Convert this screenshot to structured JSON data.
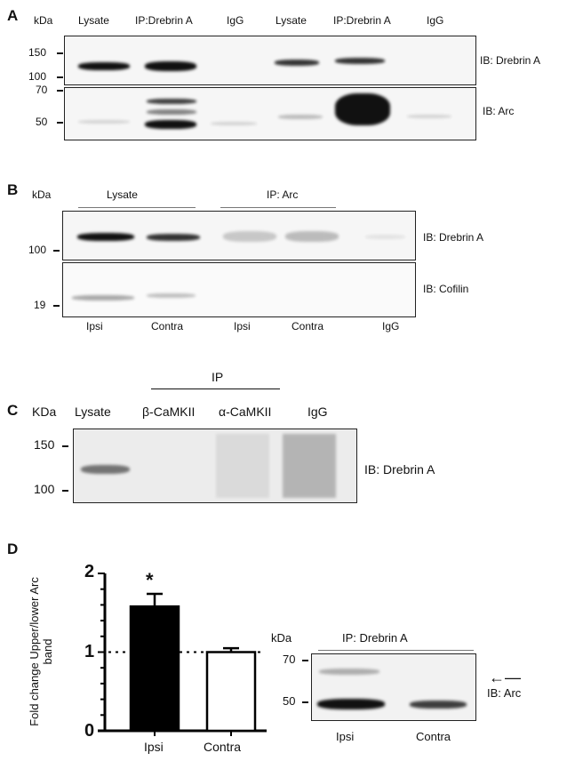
{
  "panelA": {
    "label": "A",
    "kda": "kDa",
    "lanes": [
      "Lysate",
      "IP:Drebrin A",
      "IgG",
      "Lysate",
      "IP:Drebrin A",
      "IgG"
    ],
    "markers": [
      "150",
      "100",
      "70",
      "50"
    ],
    "ib": [
      "IB: Drebrin A",
      "IB: Arc"
    ]
  },
  "panelB": {
    "label": "B",
    "kda": "kDa",
    "groups": [
      "Lysate",
      "IP: Arc"
    ],
    "markers": [
      "100",
      "19"
    ],
    "ib": [
      "IB: Drebrin A",
      "IB: Cofilin"
    ],
    "lanes": [
      "Ipsi",
      "Contra",
      "Ipsi",
      "Contra",
      "IgG"
    ]
  },
  "panelC": {
    "label": "C",
    "kda": "KDa",
    "group": "IP",
    "lanes": [
      "Lysate",
      "β-CaMKII",
      "α-CaMKII",
      "IgG"
    ],
    "markers": [
      "150",
      "100"
    ],
    "ib": "IB: Drebrin A"
  },
  "panelD": {
    "label": "D",
    "kda": "kDa",
    "group": "IP: Drebrin A",
    "markers": [
      "70",
      "50"
    ],
    "ib": "IB: Arc",
    "lanes": [
      "Ipsi",
      "Contra"
    ]
  },
  "chart_data": {
    "type": "bar",
    "categories": [
      "Ipsi",
      "Contra"
    ],
    "values": [
      1.58,
      1.0
    ],
    "errors": [
      0.16,
      0.05
    ],
    "fill_colors": [
      "#000000",
      "#ffffff"
    ],
    "ylabel": "Fold change Upper/lower Arc band",
    "yticks": [
      "0",
      "1",
      "2"
    ],
    "ylim": [
      0,
      2
    ],
    "reference_line": 1,
    "annotations": [
      {
        "category": "Ipsi",
        "text": "*"
      }
    ]
  }
}
